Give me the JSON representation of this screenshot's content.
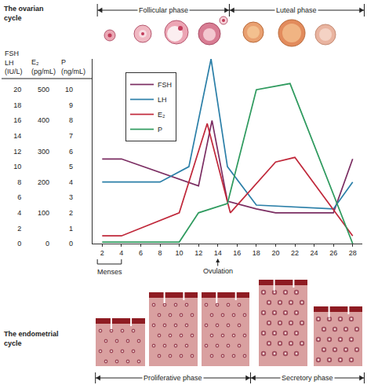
{
  "chart_data": {
    "type": "line",
    "xlim": [
      1,
      29
    ],
    "xticks": [
      2,
      4,
      6,
      8,
      10,
      12,
      14,
      16,
      18,
      20,
      22,
      24,
      26,
      28
    ],
    "ylim": [
      0,
      24
    ],
    "yticks": [
      0,
      2,
      4,
      6,
      8,
      10,
      12,
      14,
      16,
      18,
      20
    ],
    "y_label": "FSH LH (IU/L)",
    "y2lim": [
      0,
      600
    ],
    "y2ticks": [
      0,
      100,
      200,
      300,
      400,
      500
    ],
    "y2_label": "E₂ (pg/mL)",
    "y3lim": [
      0,
      12
    ],
    "y3ticks": [
      0,
      1,
      2,
      3,
      4,
      5,
      6,
      7,
      8,
      9,
      10
    ],
    "y3_label": "P (ng/mL)",
    "grid": false,
    "legend": "upper left",
    "series": [
      {
        "name": "FSH",
        "color": "#7b2d62",
        "axis": "y",
        "x": [
          2,
          4,
          12,
          13.4,
          15,
          18,
          20,
          26,
          28
        ],
        "values": [
          11,
          11,
          7.5,
          16,
          5.5,
          4.5,
          4,
          4,
          11
        ]
      },
      {
        "name": "LH",
        "color": "#2b7fa8",
        "axis": "y",
        "x": [
          2,
          8,
          11,
          13.3,
          15,
          18,
          26,
          28
        ],
        "values": [
          8,
          8,
          10,
          24,
          10,
          5,
          4.5,
          8
        ]
      },
      {
        "name": "E₂",
        "color": "#c0283a",
        "axis": "y2",
        "x": [
          2,
          4,
          10,
          12.9,
          15.3,
          20,
          22,
          28
        ],
        "values": [
          25,
          25,
          100,
          390,
          100,
          265,
          280,
          25
        ]
      },
      {
        "name": "P",
        "color": "#2e9a5e",
        "axis": "y3",
        "x": [
          2,
          10,
          12,
          15,
          18,
          21.5,
          28
        ],
        "values": [
          0.1,
          0.1,
          2,
          2.6,
          10,
          10.4,
          0
        ]
      }
    ],
    "annotations": [
      {
        "text": "Menses",
        "x": [
          1.5,
          4
        ]
      },
      {
        "text": "Ovulation",
        "x": 14
      }
    ],
    "ovarian_cycle": {
      "label": "The ovarian cycle",
      "phases": [
        {
          "label": "Follicular phase",
          "x": [
            1.5,
            15.2
          ]
        },
        {
          "label": "Luteal phase",
          "x": [
            15.2,
            29.2
          ]
        }
      ]
    },
    "endometrial_cycle": {
      "label": "The endometrial cycle",
      "phases": [
        {
          "label": "Proliferative phase",
          "x": [
            1.3,
            17.4
          ]
        },
        {
          "label": "Secretory phase",
          "x": [
            17.4,
            29.2
          ]
        }
      ]
    }
  }
}
